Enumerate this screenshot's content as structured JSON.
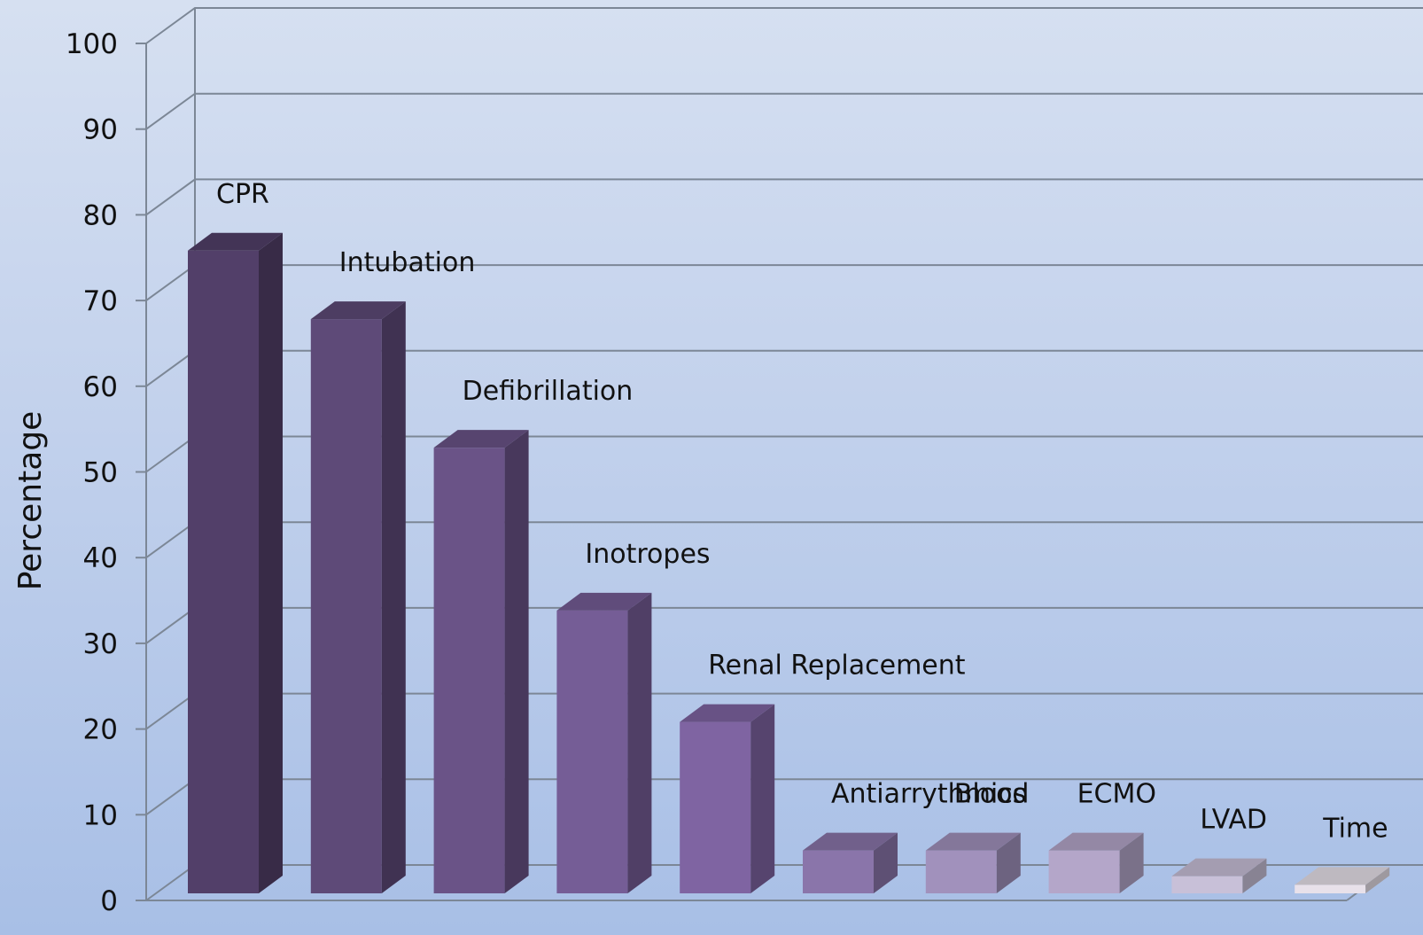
{
  "chart_data": {
    "type": "bar",
    "title": "",
    "xlabel": "",
    "ylabel": "Percentage",
    "ylim": [
      0,
      100
    ],
    "yticks": [
      0,
      10,
      20,
      30,
      40,
      50,
      60,
      70,
      80,
      90,
      100
    ],
    "grid": true,
    "style": "3d-column",
    "categories": [
      "CPR",
      "Intubation",
      "Defibrillation",
      "Inotropes",
      "Renal Replacement",
      "Antiarrythmics",
      "Blood",
      "ECMO",
      "LVAD",
      "Time"
    ],
    "values": [
      75,
      67,
      52,
      33,
      20,
      5,
      5,
      5,
      2,
      1
    ],
    "colors": [
      "#523f69",
      "#5e4a78",
      "#6a5387",
      "#755d96",
      "#7f64a2",
      "#8a75aa",
      "#a191bc",
      "#b4a6c9",
      "#c8c0d8",
      "#e8e1ea"
    ]
  }
}
